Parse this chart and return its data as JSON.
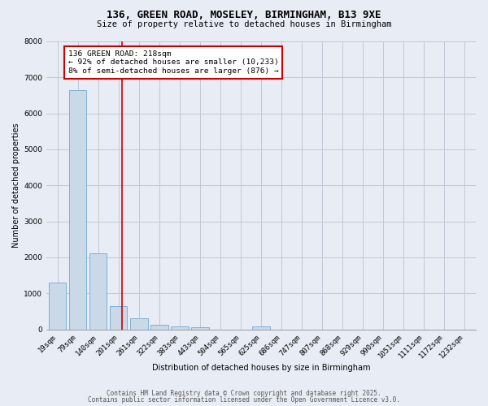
{
  "title": "136, GREEN ROAD, MOSELEY, BIRMINGHAM, B13 9XE",
  "subtitle": "Size of property relative to detached houses in Birmingham",
  "xlabel": "Distribution of detached houses by size in Birmingham",
  "ylabel": "Number of detached properties",
  "categories": [
    "19sqm",
    "79sqm",
    "140sqm",
    "201sqm",
    "261sqm",
    "322sqm",
    "383sqm",
    "443sqm",
    "504sqm",
    "565sqm",
    "625sqm",
    "686sqm",
    "747sqm",
    "807sqm",
    "868sqm",
    "929sqm",
    "990sqm",
    "1051sqm",
    "1111sqm",
    "1172sqm",
    "1232sqm"
  ],
  "values": [
    1300,
    6650,
    2100,
    650,
    300,
    130,
    80,
    50,
    0,
    0,
    80,
    0,
    0,
    0,
    0,
    0,
    0,
    0,
    0,
    0,
    0
  ],
  "bar_color": "#c9d9e8",
  "bar_edge_color": "#6fa8d6",
  "grid_color": "#c0c8d8",
  "background_color": "#e8edf5",
  "red_line_x": 3.18,
  "annotation_text": "136 GREEN ROAD: 218sqm\n← 92% of detached houses are smaller (10,233)\n8% of semi-detached houses are larger (876) →",
  "annotation_box_color": "#ffffff",
  "annotation_border_color": "#cc0000",
  "footer_line1": "Contains HM Land Registry data © Crown copyright and database right 2025.",
  "footer_line2": "Contains public sector information licensed under the Open Government Licence v3.0.",
  "ylim": [
    0,
    8000
  ],
  "title_fontsize": 9,
  "subtitle_fontsize": 7.5,
  "axis_fontsize": 7,
  "tick_fontsize": 6.5,
  "annotation_fontsize": 6.8,
  "footer_fontsize": 5.5
}
